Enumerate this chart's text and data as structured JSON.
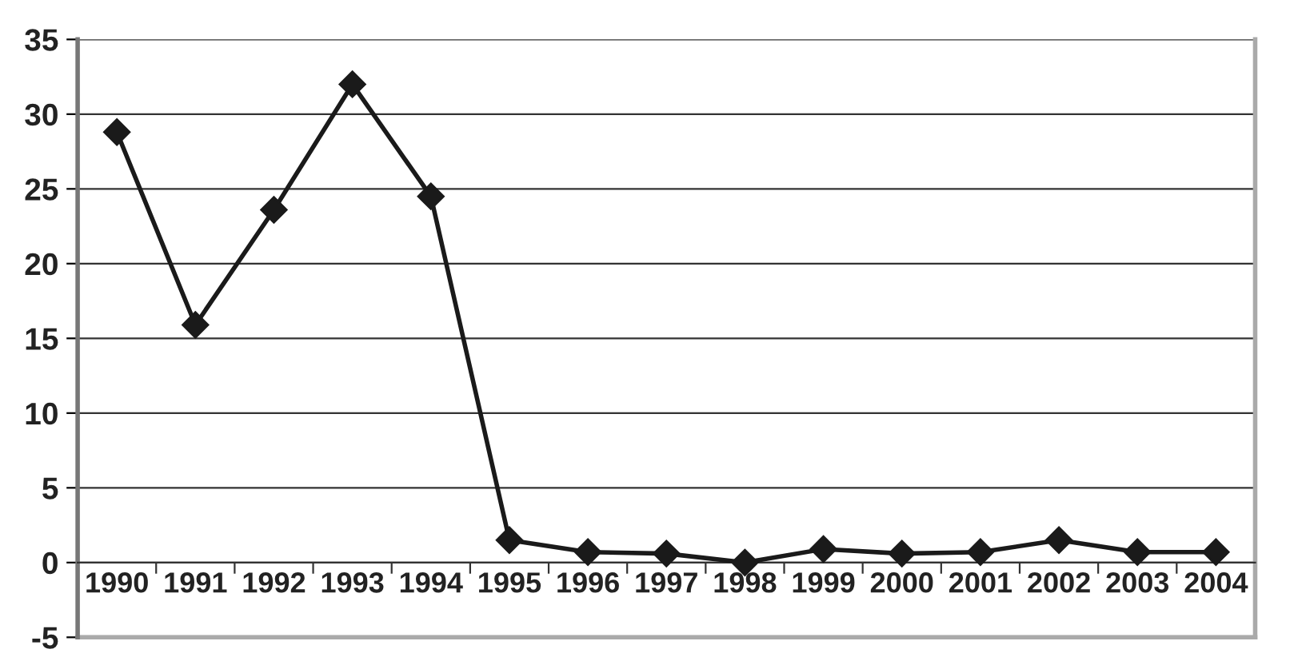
{
  "chart_data": {
    "type": "line",
    "categories": [
      "1990",
      "1991",
      "1992",
      "1993",
      "1994",
      "1995",
      "1996",
      "1997",
      "1998",
      "1999",
      "2000",
      "2001",
      "2002",
      "2003",
      "2004"
    ],
    "series": [
      {
        "color": "#1a1a1a",
        "values": [
          28.8,
          15.9,
          23.6,
          32.0,
          24.5,
          1.5,
          0.7,
          0.6,
          0.0,
          0.9,
          0.6,
          0.7,
          1.5,
          0.7,
          0.7
        ]
      }
    ],
    "ylim": [
      -5,
      35
    ],
    "yticks": [
      -5,
      0,
      5,
      10,
      15,
      20,
      25,
      30,
      35
    ],
    "grid": "y",
    "marker": "diamond",
    "line_style": "solid"
  }
}
